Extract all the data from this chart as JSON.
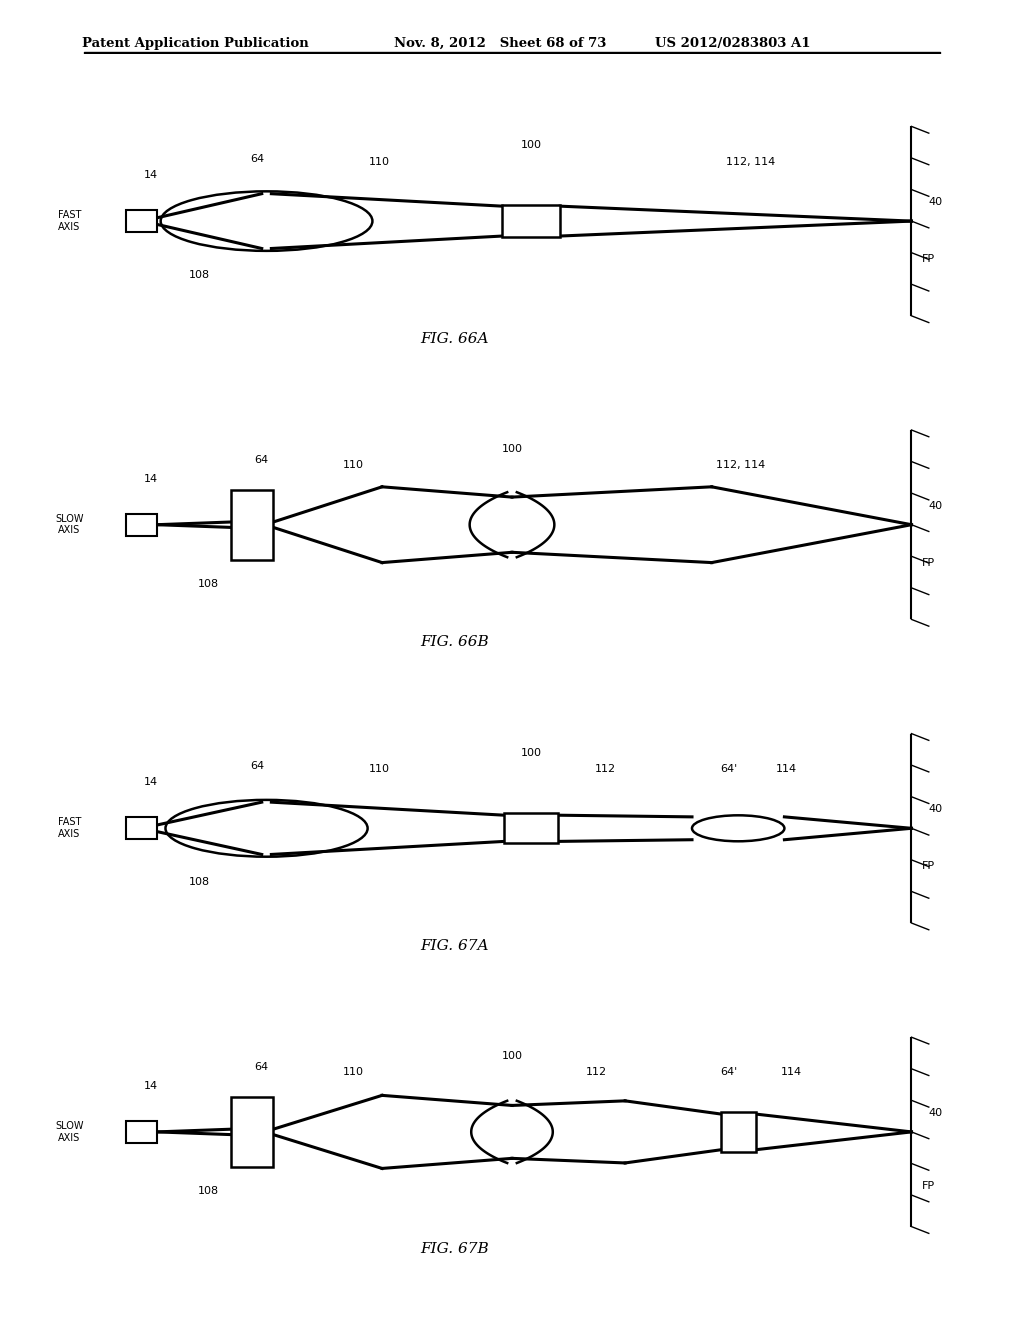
{
  "title_left": "Patent Application Publication",
  "title_mid": "Nov. 8, 2012   Sheet 68 of 73",
  "title_right": "US 2012/0283803 A1",
  "bg_color": "#ffffff"
}
